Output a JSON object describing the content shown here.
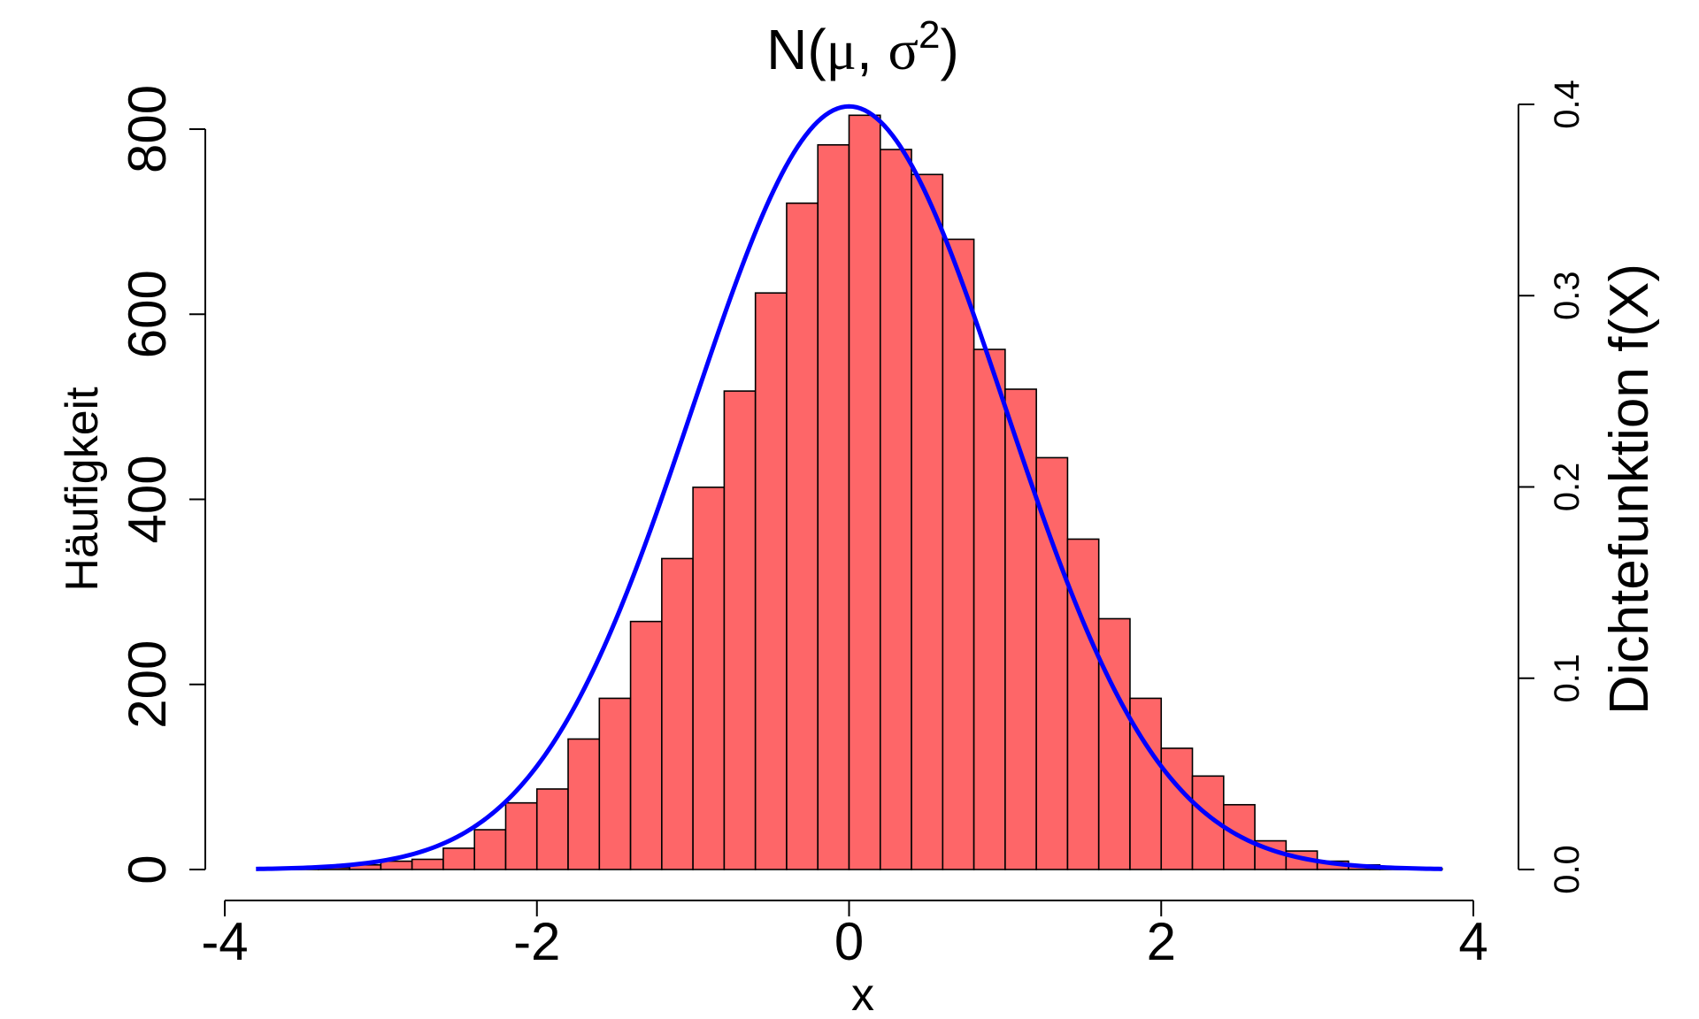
{
  "chart_data": {
    "type": "bar",
    "title": {
      "prefix": "N(",
      "mu": "μ",
      "sep": ", ",
      "sigma": "σ",
      "exp": "2",
      "suffix": ")"
    },
    "xlabel": "x",
    "ylabel": "Häufigkeit",
    "y2label": "Dichtefunktion f(X)",
    "xlim": [
      -4,
      4
    ],
    "ylim": [
      0,
      800
    ],
    "y2lim": [
      0,
      0.4
    ],
    "x_ticks": [
      -4,
      -2,
      0,
      2,
      4
    ],
    "x_tick_labels": [
      "-4",
      "-2",
      "0",
      "2",
      "4"
    ],
    "y_ticks": [
      0,
      200,
      400,
      600,
      800
    ],
    "y_tick_labels": [
      "0",
      "200",
      "400",
      "600",
      "800"
    ],
    "y2_ticks": [
      0,
      0.1,
      0.2,
      0.3,
      0.4
    ],
    "y2_tick_labels": [
      "0.0",
      "0.1",
      "0.2",
      "0.3",
      "0.4"
    ],
    "grid": false,
    "bar_color": "#fe6668",
    "bar_edge_color": "#000000",
    "curve_color": "#0000ff",
    "bin_width": 0.2,
    "bin_start": -3.8,
    "counts": [
      0,
      1,
      2,
      5,
      9,
      11,
      23,
      43,
      72,
      87,
      141,
      185,
      268,
      336,
      413,
      517,
      623,
      720,
      783,
      815,
      778,
      751,
      681,
      562,
      519,
      445,
      357,
      271,
      185,
      131,
      101,
      70,
      31,
      20,
      9,
      5,
      2,
      1,
      0,
      0
    ],
    "curve": {
      "series_label": "",
      "distribution": "normal",
      "mean": 0,
      "sd": 1,
      "x_range": [
        -3.8,
        3.8
      ],
      "axis": "right"
    }
  }
}
